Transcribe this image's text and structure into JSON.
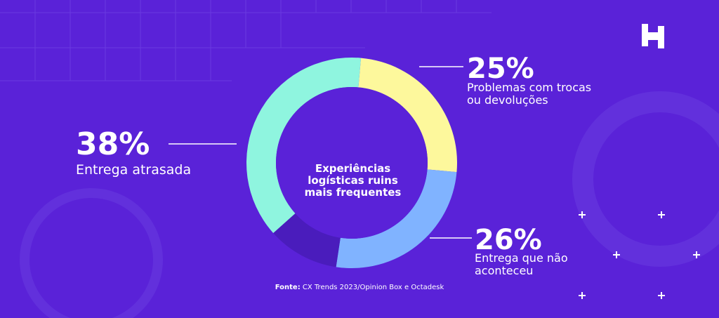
{
  "chart_data": {
    "type": "donut",
    "title": "Experiências logísticas ruins mais frequentes",
    "categories": [
      "Problemas com trocas ou devoluções",
      "Entrega que não aconteceu",
      null,
      "Entrega atrasada"
    ],
    "values": [
      25,
      26,
      11,
      38
    ],
    "value_labels": [
      "25%",
      "26%",
      null,
      "38%"
    ],
    "colors": [
      "#fdf89c",
      "#80b3ff",
      "#4a1cbc",
      "#8ff5df"
    ]
  },
  "source": {
    "label": "Fonte:",
    "text": "CX Trends 2023/Opinion Box e Octadesk"
  }
}
